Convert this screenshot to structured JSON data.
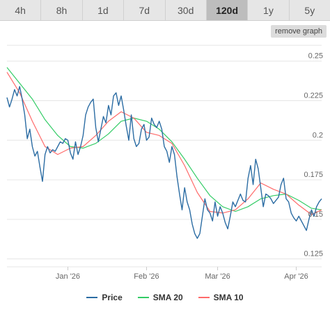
{
  "tabs": [
    {
      "label": "4h"
    },
    {
      "label": "8h"
    },
    {
      "label": "1d"
    },
    {
      "label": "7d"
    },
    {
      "label": "30d"
    },
    {
      "label": "120d",
      "active": true
    },
    {
      "label": "1y"
    },
    {
      "label": "5y"
    }
  ],
  "remove_graph_label": "remove graph",
  "chart_data": {
    "type": "line",
    "ylim": [
      0.12,
      0.26
    ],
    "yticks": [
      "0.125",
      "0.15",
      "0.175",
      "0.2",
      "0.225",
      "0.25"
    ],
    "xlim": [
      "2025-12-08",
      "2026-04-11"
    ],
    "xticks": [
      {
        "date": "2026-01-01",
        "label": "Jan '26"
      },
      {
        "date": "2026-02-01",
        "label": "Feb '26"
      },
      {
        "date": "2026-03-01",
        "label": "Mar '26"
      },
      {
        "date": "2026-04-01",
        "label": "Apr '26"
      }
    ],
    "legend_position": "bottom-center",
    "grid": true,
    "series": [
      {
        "name": "Price",
        "color": "#2b6ca3",
        "points": [
          [
            "2025-12-08",
            0.227
          ],
          [
            "2025-12-09",
            0.221
          ],
          [
            "2025-12-10",
            0.226
          ],
          [
            "2025-12-11",
            0.232
          ],
          [
            "2025-12-12",
            0.228
          ],
          [
            "2025-12-13",
            0.234
          ],
          [
            "2025-12-14",
            0.226
          ],
          [
            "2025-12-15",
            0.216
          ],
          [
            "2025-12-16",
            0.201
          ],
          [
            "2025-12-17",
            0.207
          ],
          [
            "2025-12-18",
            0.196
          ],
          [
            "2025-12-19",
            0.19
          ],
          [
            "2025-12-20",
            0.193
          ],
          [
            "2025-12-21",
            0.183
          ],
          [
            "2025-12-22",
            0.174
          ],
          [
            "2025-12-23",
            0.191
          ],
          [
            "2025-12-24",
            0.196
          ],
          [
            "2025-12-25",
            0.192
          ],
          [
            "2025-12-26",
            0.194
          ],
          [
            "2025-12-27",
            0.193
          ],
          [
            "2025-12-28",
            0.196
          ],
          [
            "2025-12-29",
            0.199
          ],
          [
            "2025-12-30",
            0.198
          ],
          [
            "2025-12-31",
            0.201
          ],
          [
            "2026-01-01",
            0.2
          ],
          [
            "2026-01-02",
            0.192
          ],
          [
            "2026-01-03",
            0.188
          ],
          [
            "2026-01-04",
            0.199
          ],
          [
            "2026-01-05",
            0.191
          ],
          [
            "2026-01-06",
            0.196
          ],
          [
            "2026-01-07",
            0.203
          ],
          [
            "2026-01-08",
            0.216
          ],
          [
            "2026-01-09",
            0.221
          ],
          [
            "2026-01-10",
            0.224
          ],
          [
            "2026-01-11",
            0.226
          ],
          [
            "2026-01-12",
            0.208
          ],
          [
            "2026-01-13",
            0.199
          ],
          [
            "2026-01-14",
            0.207
          ],
          [
            "2026-01-15",
            0.215
          ],
          [
            "2026-01-16",
            0.211
          ],
          [
            "2026-01-17",
            0.222
          ],
          [
            "2026-01-18",
            0.216
          ],
          [
            "2026-01-19",
            0.228
          ],
          [
            "2026-01-20",
            0.23
          ],
          [
            "2026-01-21",
            0.222
          ],
          [
            "2026-01-22",
            0.228
          ],
          [
            "2026-01-23",
            0.219
          ],
          [
            "2026-01-24",
            0.209
          ],
          [
            "2026-01-25",
            0.2
          ],
          [
            "2026-01-26",
            0.216
          ],
          [
            "2026-01-27",
            0.201
          ],
          [
            "2026-01-28",
            0.196
          ],
          [
            "2026-01-29",
            0.198
          ],
          [
            "2026-01-30",
            0.207
          ],
          [
            "2026-01-31",
            0.21
          ],
          [
            "2026-02-01",
            0.2
          ],
          [
            "2026-02-02",
            0.202
          ],
          [
            "2026-02-03",
            0.214
          ],
          [
            "2026-02-04",
            0.21
          ],
          [
            "2026-02-05",
            0.208
          ],
          [
            "2026-02-06",
            0.212
          ],
          [
            "2026-02-07",
            0.207
          ],
          [
            "2026-02-08",
            0.196
          ],
          [
            "2026-02-09",
            0.193
          ],
          [
            "2026-02-10",
            0.186
          ],
          [
            "2026-02-11",
            0.196
          ],
          [
            "2026-02-12",
            0.191
          ],
          [
            "2026-02-13",
            0.177
          ],
          [
            "2026-02-14",
            0.166
          ],
          [
            "2026-02-15",
            0.156
          ],
          [
            "2026-02-16",
            0.17
          ],
          [
            "2026-02-17",
            0.161
          ],
          [
            "2026-02-18",
            0.156
          ],
          [
            "2026-02-19",
            0.147
          ],
          [
            "2026-02-20",
            0.141
          ],
          [
            "2026-02-21",
            0.138
          ],
          [
            "2026-02-22",
            0.141
          ],
          [
            "2026-02-23",
            0.152
          ],
          [
            "2026-02-24",
            0.163
          ],
          [
            "2026-02-25",
            0.156
          ],
          [
            "2026-02-26",
            0.154
          ],
          [
            "2026-02-27",
            0.149
          ],
          [
            "2026-02-28",
            0.161
          ],
          [
            "2026-03-01",
            0.152
          ],
          [
            "2026-03-02",
            0.158
          ],
          [
            "2026-03-03",
            0.154
          ],
          [
            "2026-03-04",
            0.148
          ],
          [
            "2026-03-05",
            0.144
          ],
          [
            "2026-03-06",
            0.152
          ],
          [
            "2026-03-07",
            0.161
          ],
          [
            "2026-03-08",
            0.158
          ],
          [
            "2026-03-09",
            0.162
          ],
          [
            "2026-03-10",
            0.166
          ],
          [
            "2026-03-11",
            0.162
          ],
          [
            "2026-03-12",
            0.161
          ],
          [
            "2026-03-13",
            0.176
          ],
          [
            "2026-03-14",
            0.184
          ],
          [
            "2026-03-15",
            0.172
          ],
          [
            "2026-03-16",
            0.188
          ],
          [
            "2026-03-17",
            0.182
          ],
          [
            "2026-03-18",
            0.17
          ],
          [
            "2026-03-19",
            0.158
          ],
          [
            "2026-03-20",
            0.166
          ],
          [
            "2026-03-21",
            0.165
          ],
          [
            "2026-03-22",
            0.163
          ],
          [
            "2026-03-23",
            0.16
          ],
          [
            "2026-03-24",
            0.162
          ],
          [
            "2026-03-25",
            0.164
          ],
          [
            "2026-03-26",
            0.172
          ],
          [
            "2026-03-27",
            0.176
          ],
          [
            "2026-03-28",
            0.163
          ],
          [
            "2026-03-29",
            0.161
          ],
          [
            "2026-03-30",
            0.154
          ],
          [
            "2026-03-31",
            0.151
          ],
          [
            "2026-04-01",
            0.149
          ],
          [
            "2026-04-02",
            0.152
          ],
          [
            "2026-04-03",
            0.149
          ],
          [
            "2026-04-04",
            0.146
          ],
          [
            "2026-04-05",
            0.143
          ],
          [
            "2026-04-06",
            0.15
          ],
          [
            "2026-04-07",
            0.156
          ],
          [
            "2026-04-08",
            0.152
          ],
          [
            "2026-04-09",
            0.158
          ],
          [
            "2026-04-10",
            0.161
          ],
          [
            "2026-04-11",
            0.163
          ]
        ]
      },
      {
        "name": "SMA 20",
        "color": "#33cc66",
        "points": [
          [
            "2025-12-08",
            0.246
          ],
          [
            "2025-12-13",
            0.236
          ],
          [
            "2025-12-18",
            0.226
          ],
          [
            "2025-12-23",
            0.213
          ],
          [
            "2025-12-28",
            0.203
          ],
          [
            "2026-01-02",
            0.196
          ],
          [
            "2026-01-07",
            0.195
          ],
          [
            "2026-01-12",
            0.198
          ],
          [
            "2026-01-17",
            0.204
          ],
          [
            "2026-01-22",
            0.212
          ],
          [
            "2026-01-27",
            0.214
          ],
          [
            "2026-02-01",
            0.212
          ],
          [
            "2026-02-06",
            0.207
          ],
          [
            "2026-02-11",
            0.199
          ],
          [
            "2026-02-16",
            0.188
          ],
          [
            "2026-02-21",
            0.176
          ],
          [
            "2026-02-26",
            0.165
          ],
          [
            "2026-03-03",
            0.158
          ],
          [
            "2026-03-08",
            0.155
          ],
          [
            "2026-03-13",
            0.158
          ],
          [
            "2026-03-18",
            0.163
          ],
          [
            "2026-03-23",
            0.165
          ],
          [
            "2026-03-28",
            0.166
          ],
          [
            "2026-04-02",
            0.162
          ],
          [
            "2026-04-07",
            0.157
          ],
          [
            "2026-04-11",
            0.156
          ]
        ]
      },
      {
        "name": "SMA 10",
        "color": "#ff6a6a",
        "points": [
          [
            "2025-12-08",
            0.243
          ],
          [
            "2025-12-13",
            0.23
          ],
          [
            "2025-12-18",
            0.212
          ],
          [
            "2025-12-23",
            0.196
          ],
          [
            "2025-12-28",
            0.191
          ],
          [
            "2026-01-02",
            0.195
          ],
          [
            "2026-01-07",
            0.196
          ],
          [
            "2026-01-12",
            0.203
          ],
          [
            "2026-01-17",
            0.212
          ],
          [
            "2026-01-22",
            0.218
          ],
          [
            "2026-01-27",
            0.214
          ],
          [
            "2026-02-01",
            0.205
          ],
          [
            "2026-02-06",
            0.203
          ],
          [
            "2026-02-11",
            0.198
          ],
          [
            "2026-02-16",
            0.184
          ],
          [
            "2026-02-21",
            0.167
          ],
          [
            "2026-02-26",
            0.155
          ],
          [
            "2026-03-03",
            0.154
          ],
          [
            "2026-03-08",
            0.156
          ],
          [
            "2026-03-13",
            0.163
          ],
          [
            "2026-03-18",
            0.173
          ],
          [
            "2026-03-23",
            0.169
          ],
          [
            "2026-03-28",
            0.166
          ],
          [
            "2026-04-02",
            0.159
          ],
          [
            "2026-04-07",
            0.153
          ],
          [
            "2026-04-11",
            0.156
          ]
        ]
      }
    ]
  }
}
